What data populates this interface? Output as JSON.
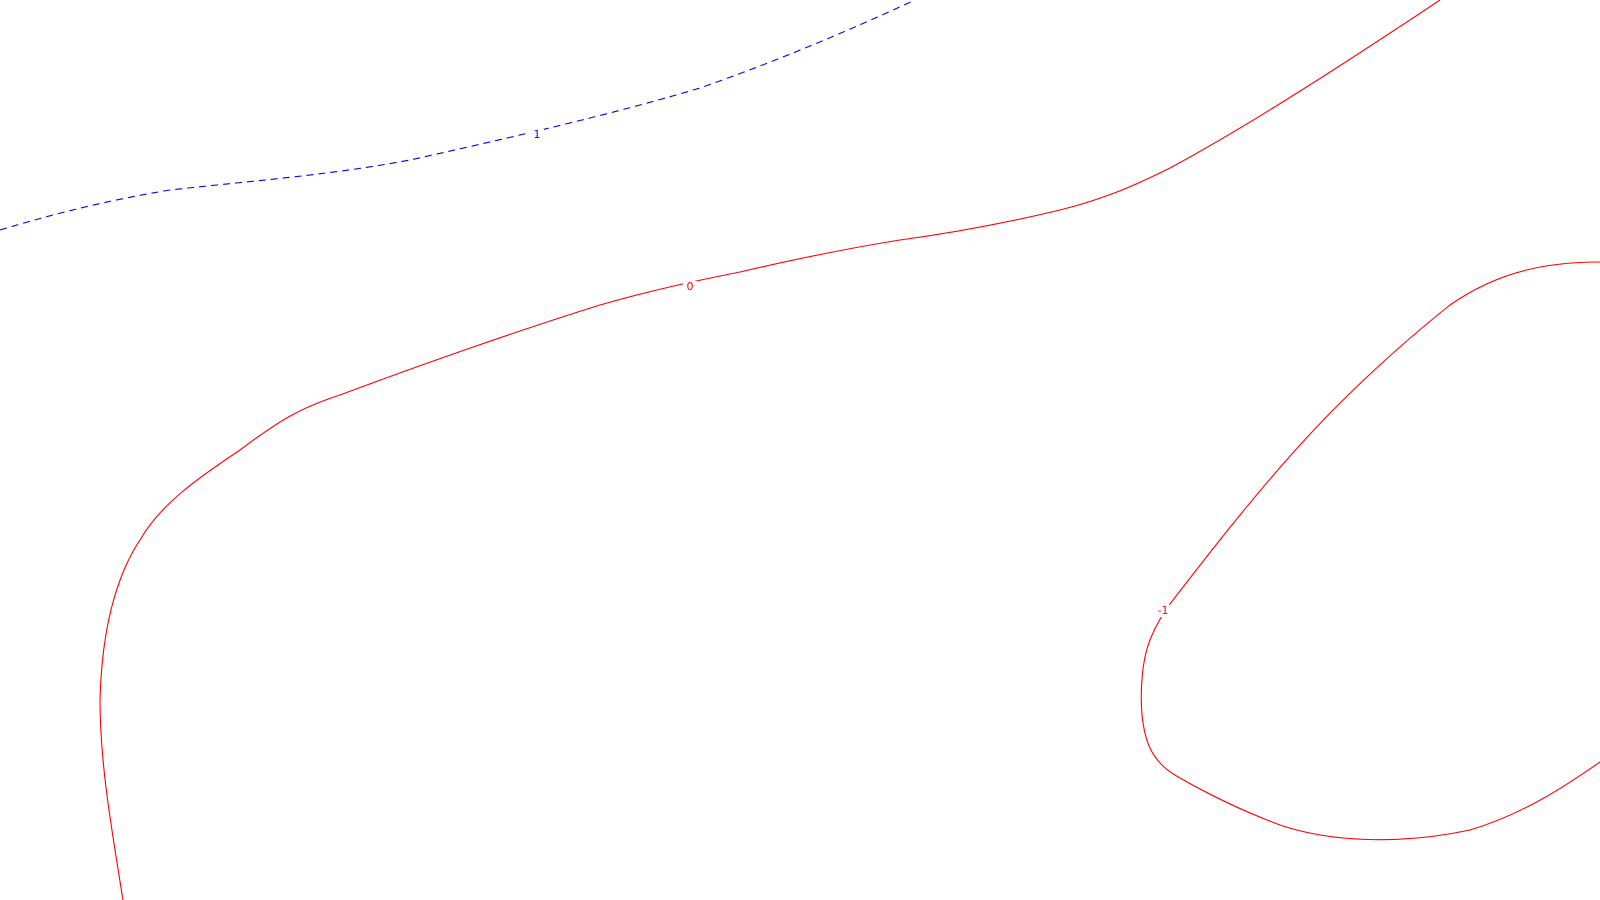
{
  "chart_data": {
    "type": "contour",
    "title": "",
    "xlabel": "",
    "ylabel": "",
    "grid": false,
    "legend": "none",
    "levels": [
      {
        "level": "1",
        "color": "#0000ff",
        "style": "dashed",
        "segments": [
          {
            "label": "1"
          }
        ]
      },
      {
        "level": "0",
        "color": "#ff0000",
        "style": "solid",
        "segments": [
          {
            "label": "0"
          }
        ]
      },
      {
        "level": "-1",
        "color": "#ff0000",
        "style": "solid",
        "segments": [
          {
            "label": "-1"
          }
        ]
      }
    ]
  }
}
